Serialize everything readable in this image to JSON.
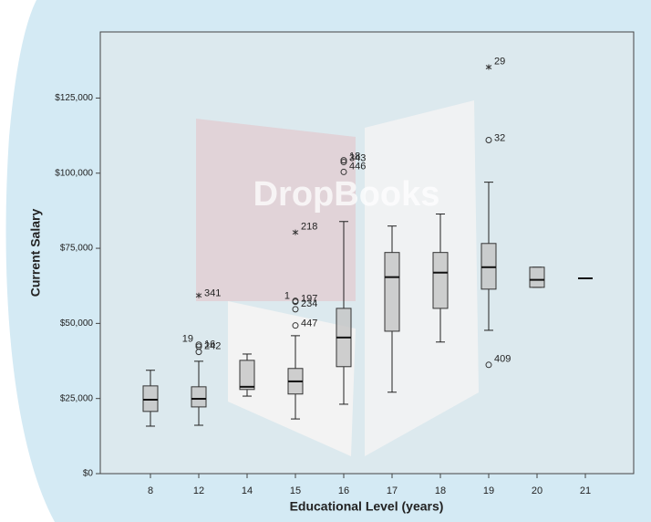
{
  "chart_data": {
    "type": "box",
    "watermark": "DropBooks",
    "x_label": "Educational Level (years)",
    "y_label": "Current Salary",
    "categories": [
      "8",
      "12",
      "14",
      "15",
      "16",
      "17",
      "18",
      "19",
      "20",
      "21"
    ],
    "ylim": [
      0,
      147000
    ],
    "yticks": [
      {
        "value": 0,
        "label": "$0"
      },
      {
        "value": 25000,
        "label": "$25,000"
      },
      {
        "value": 50000,
        "label": "$50,000"
      },
      {
        "value": 75000,
        "label": "$75,000"
      },
      {
        "value": 100000,
        "label": "$100,000"
      },
      {
        "value": 125000,
        "label": "$125,000"
      }
    ],
    "color": "#c4c4c4",
    "boxes": [
      {
        "low": 15800,
        "q1": 20700,
        "median": 24600,
        "q3": 29200,
        "high": 34400,
        "outliers": []
      },
      {
        "low": 16100,
        "q1": 22200,
        "median": 24900,
        "q3": 28900,
        "high": 37400,
        "outliers": [
          {
            "value": 42900,
            "label": "19",
            "marker": "circle"
          },
          {
            "value": 42300,
            "label": "16",
            "marker": "circle"
          },
          {
            "value": 40500,
            "label": "242",
            "marker": "circle"
          },
          {
            "value": 59300,
            "label": "341",
            "marker": "star"
          }
        ]
      },
      {
        "low": 25800,
        "q1": 28000,
        "median": 28900,
        "q3": 37700,
        "high": 39800,
        "outliers": []
      },
      {
        "low": 18200,
        "q1": 26500,
        "median": 30700,
        "q3": 35000,
        "high": 45900,
        "outliers": [
          {
            "value": 57200,
            "label": "1",
            "marker": "circle"
          },
          {
            "value": 57500,
            "label": "197",
            "marker": "circle"
          },
          {
            "value": 54700,
            "label": "234",
            "marker": "circle"
          },
          {
            "value": 49300,
            "label": "447",
            "marker": "circle"
          },
          {
            "value": 80300,
            "label": "218",
            "marker": "star"
          }
        ]
      },
      {
        "low": 23100,
        "q1": 35600,
        "median": 45300,
        "q3": 55000,
        "high": 83900,
        "outliers": [
          {
            "value": 103700,
            "label": "18",
            "marker": "circle"
          },
          {
            "value": 104300,
            "label": "343",
            "marker": "circle"
          },
          {
            "value": 100400,
            "label": "446",
            "marker": "circle"
          }
        ]
      },
      {
        "low": 27100,
        "q1": 47400,
        "median": 65400,
        "q3": 73600,
        "high": 82400,
        "outliers": []
      },
      {
        "low": 43800,
        "q1": 55000,
        "median": 66900,
        "q3": 73600,
        "high": 86400,
        "outliers": []
      },
      {
        "low": 47700,
        "q1": 61400,
        "median": 68700,
        "q3": 76600,
        "high": 97000,
        "outliers": [
          {
            "value": 135300,
            "label": "29",
            "marker": "star"
          },
          {
            "value": 111000,
            "label": "32",
            "marker": "circle"
          },
          {
            "value": 36200,
            "label": "409",
            "marker": "circle"
          }
        ]
      },
      {
        "low": 62000,
        "q1": 62000,
        "median": 64500,
        "q3": 68700,
        "high": 68700,
        "outliers": []
      },
      {
        "low": 65000,
        "q1": 65000,
        "median": 65000,
        "q3": 65000,
        "high": 65000,
        "outliers": []
      }
    ]
  }
}
